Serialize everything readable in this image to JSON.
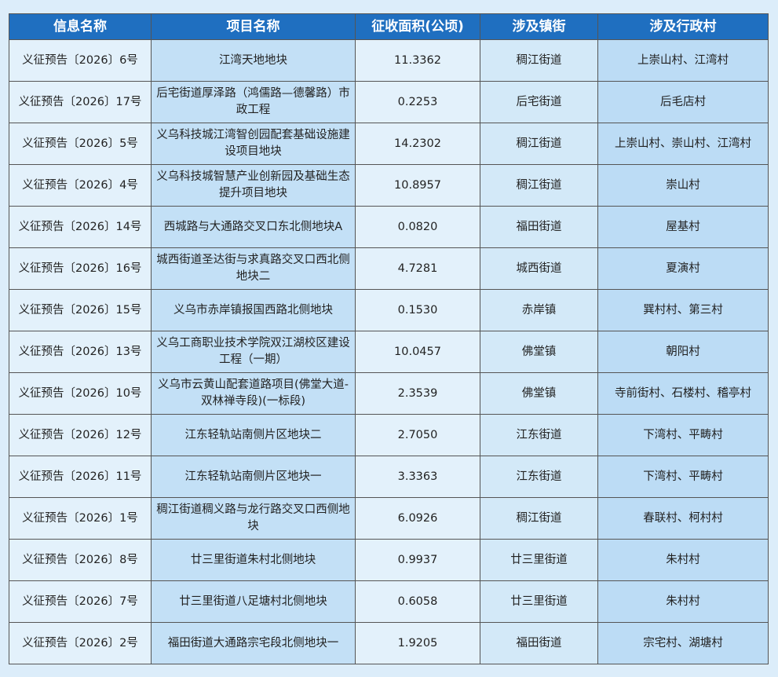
{
  "table": {
    "header": [
      "信息名称",
      "项目名称",
      "征收面积(公顷)",
      "涉及镇街",
      "涉及行政村"
    ],
    "rows": [
      [
        "义征预告〔2026〕6号",
        "江湾天地地块",
        "11.3362",
        "稠江街道",
        "上崇山村、江湾村"
      ],
      [
        "义征预告〔2026〕17号",
        "后宅街道厚泽路（鸿儒路—德馨路）市政工程",
        "0.2253",
        "后宅街道",
        "后毛店村"
      ],
      [
        "义征预告〔2026〕5号",
        "义乌科技城江湾智创园配套基础设施建设项目地块",
        "14.2302",
        "稠江街道",
        "上崇山村、崇山村、江湾村"
      ],
      [
        "义征预告〔2026〕4号",
        "义乌科技城智慧产业创新园及基础生态提升项目地块",
        "10.8957",
        "稠江街道",
        "崇山村"
      ],
      [
        "义征预告〔2026〕14号",
        "西城路与大通路交叉口东北侧地块A",
        "0.0820",
        "福田街道",
        "屋基村"
      ],
      [
        "义征预告〔2026〕16号",
        "城西街道圣达街与求真路交叉口西北侧地块二",
        "4.7281",
        "城西街道",
        "夏演村"
      ],
      [
        "义征预告〔2026〕15号",
        "义乌市赤岸镇报国西路北侧地块",
        "0.1530",
        "赤岸镇",
        "巽村村、第三村"
      ],
      [
        "义征预告〔2026〕13号",
        "义乌工商职业技术学院双江湖校区建设工程（一期）",
        "10.0457",
        "佛堂镇",
        "朝阳村"
      ],
      [
        "义征预告〔2026〕10号",
        "义乌市云黄山配套道路项目(佛堂大道-双林禅寺段)(一标段)",
        "2.3539",
        "佛堂镇",
        "寺前街村、石楼村、稽亭村"
      ],
      [
        "义征预告〔2026〕12号",
        "江东轻轨站南侧片区地块二",
        "2.7050",
        "江东街道",
        "下湾村、平畴村"
      ],
      [
        "义征预告〔2026〕11号",
        "江东轻轨站南侧片区地块一",
        "3.3363",
        "江东街道",
        "下湾村、平畴村"
      ],
      [
        "义征预告〔2026〕1号",
        "稠江街道稠义路与龙行路交叉口西侧地块",
        "6.0926",
        "稠江街道",
        "春联村、柯村村"
      ],
      [
        "义征预告〔2026〕8号",
        "廿三里街道朱村北侧地块",
        "0.9937",
        "廿三里街道",
        "朱村村"
      ],
      [
        "义征预告〔2026〕7号",
        "廿三里街道八足塘村北侧地块",
        "0.6058",
        "廿三里街道",
        "朱村村"
      ],
      [
        "义征预告〔2026〕2号",
        "福田街道大通路宗宅段北侧地块一",
        "1.9205",
        "福田街道",
        "宗宅村、湖塘村"
      ]
    ]
  }
}
